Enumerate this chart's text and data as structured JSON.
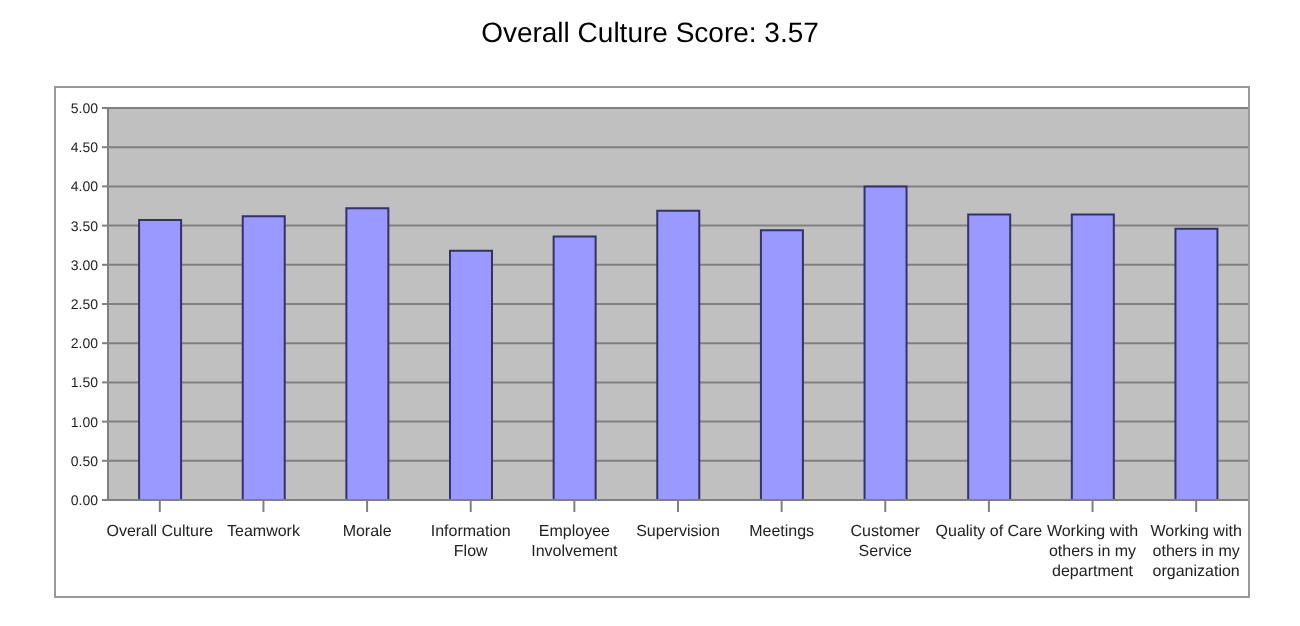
{
  "chart_data": {
    "type": "bar",
    "title": "Overall Culture Score: 3.57",
    "categories": [
      "Overall Culture",
      "Teamwork",
      "Morale",
      "Information Flow",
      "Employee Involvement",
      "Supervision",
      "Meetings",
      "Customer Service",
      "Quality of Care",
      "Working with others in my department",
      "Working with others in my organization"
    ],
    "values": [
      3.57,
      3.62,
      3.72,
      3.18,
      3.36,
      3.69,
      3.44,
      4.0,
      3.64,
      3.64,
      3.46
    ],
    "color": "#9999ff",
    "ylim": [
      0,
      5
    ],
    "yticks": [
      {
        "value": 0,
        "label": "0.00"
      },
      {
        "value": 0.5,
        "label": "0.50"
      },
      {
        "value": 1,
        "label": "1.00"
      },
      {
        "value": 1.5,
        "label": "1.50"
      },
      {
        "value": 2,
        "label": "2.00"
      },
      {
        "value": 2.5,
        "label": "2.50"
      },
      {
        "value": 3,
        "label": "3.00"
      },
      {
        "value": 3.5,
        "label": "3.50"
      },
      {
        "value": 4,
        "label": "4.00"
      },
      {
        "value": 4.5,
        "label": "4.50"
      },
      {
        "value": 5,
        "label": "5.00"
      }
    ],
    "grid": "y"
  }
}
